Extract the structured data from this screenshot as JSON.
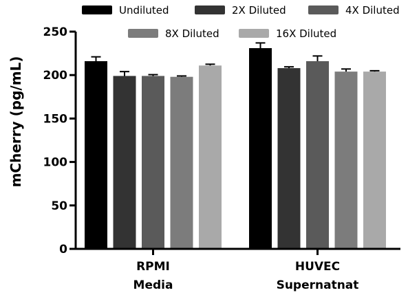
{
  "chart_data": {
    "type": "bar",
    "categories": [
      [
        "RPMI",
        "Media"
      ],
      [
        "HUVEC",
        "Supernatnat"
      ]
    ],
    "ylabel": "mCherry (pg/mL)",
    "ylim": [
      0,
      250
    ],
    "yticks": [
      0,
      50,
      100,
      150,
      200,
      250
    ],
    "legend_placement": "top",
    "grid": false,
    "series": [
      {
        "name": "Undiluted",
        "color": "#000000",
        "values": [
          216,
          231
        ],
        "errors": [
          5,
          6
        ]
      },
      {
        "name": "2X Diluted",
        "color": "#333333",
        "values": [
          199,
          208
        ],
        "errors": [
          5,
          1.5
        ]
      },
      {
        "name": "4X Diluted",
        "color": "#5a5a5a",
        "values": [
          199,
          216
        ],
        "errors": [
          1.5,
          6
        ]
      },
      {
        "name": "8X Diluted",
        "color": "#7c7c7c",
        "values": [
          198,
          204
        ],
        "errors": [
          1,
          3
        ]
      },
      {
        "name": "16X Diluted",
        "color": "#a9a9a9",
        "values": [
          211,
          204
        ],
        "errors": [
          1.5,
          1
        ]
      }
    ]
  }
}
